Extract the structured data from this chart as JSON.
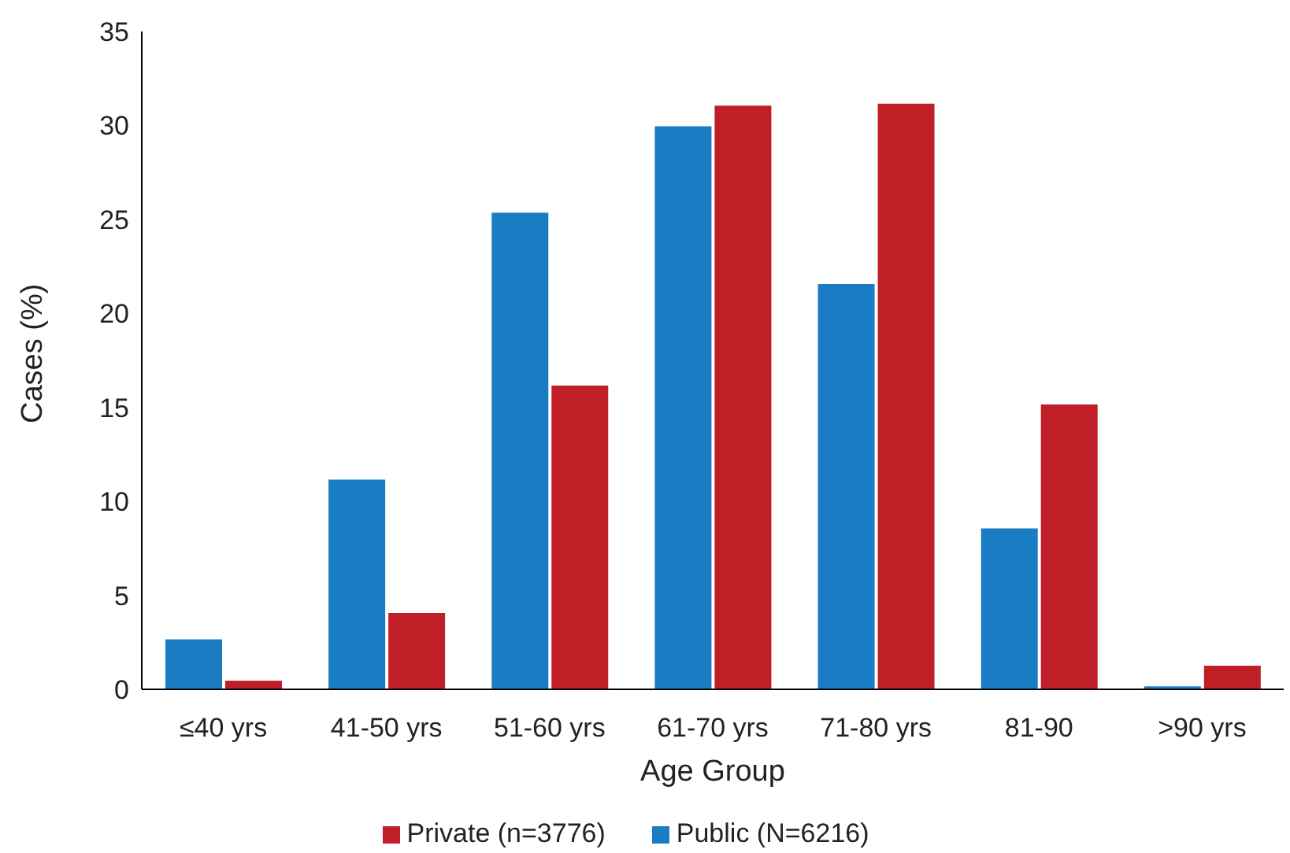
{
  "chart_data": {
    "type": "bar",
    "xlabel": "Age Group",
    "ylabel": "Cases (%)",
    "categories": [
      "≤40 yrs",
      "41-50 yrs",
      "51-60 yrs",
      "61-70 yrs",
      "71-80 yrs",
      "81-90",
      ">90 yrs"
    ],
    "series": [
      {
        "name": "Public (N=6216)",
        "color": "#1a7dc4",
        "values": [
          2.7,
          11.2,
          25.4,
          30.0,
          21.6,
          8.6,
          0.2
        ]
      },
      {
        "name": "Private (n=3776)",
        "color": "#c01f28",
        "values": [
          0.5,
          4.1,
          16.2,
          31.1,
          31.2,
          15.2,
          1.3
        ]
      }
    ],
    "ylim": [
      0,
      35
    ],
    "yticks": [
      0,
      5,
      10,
      15,
      20,
      25,
      30,
      35
    ],
    "grid": false,
    "legend": "bottom"
  }
}
